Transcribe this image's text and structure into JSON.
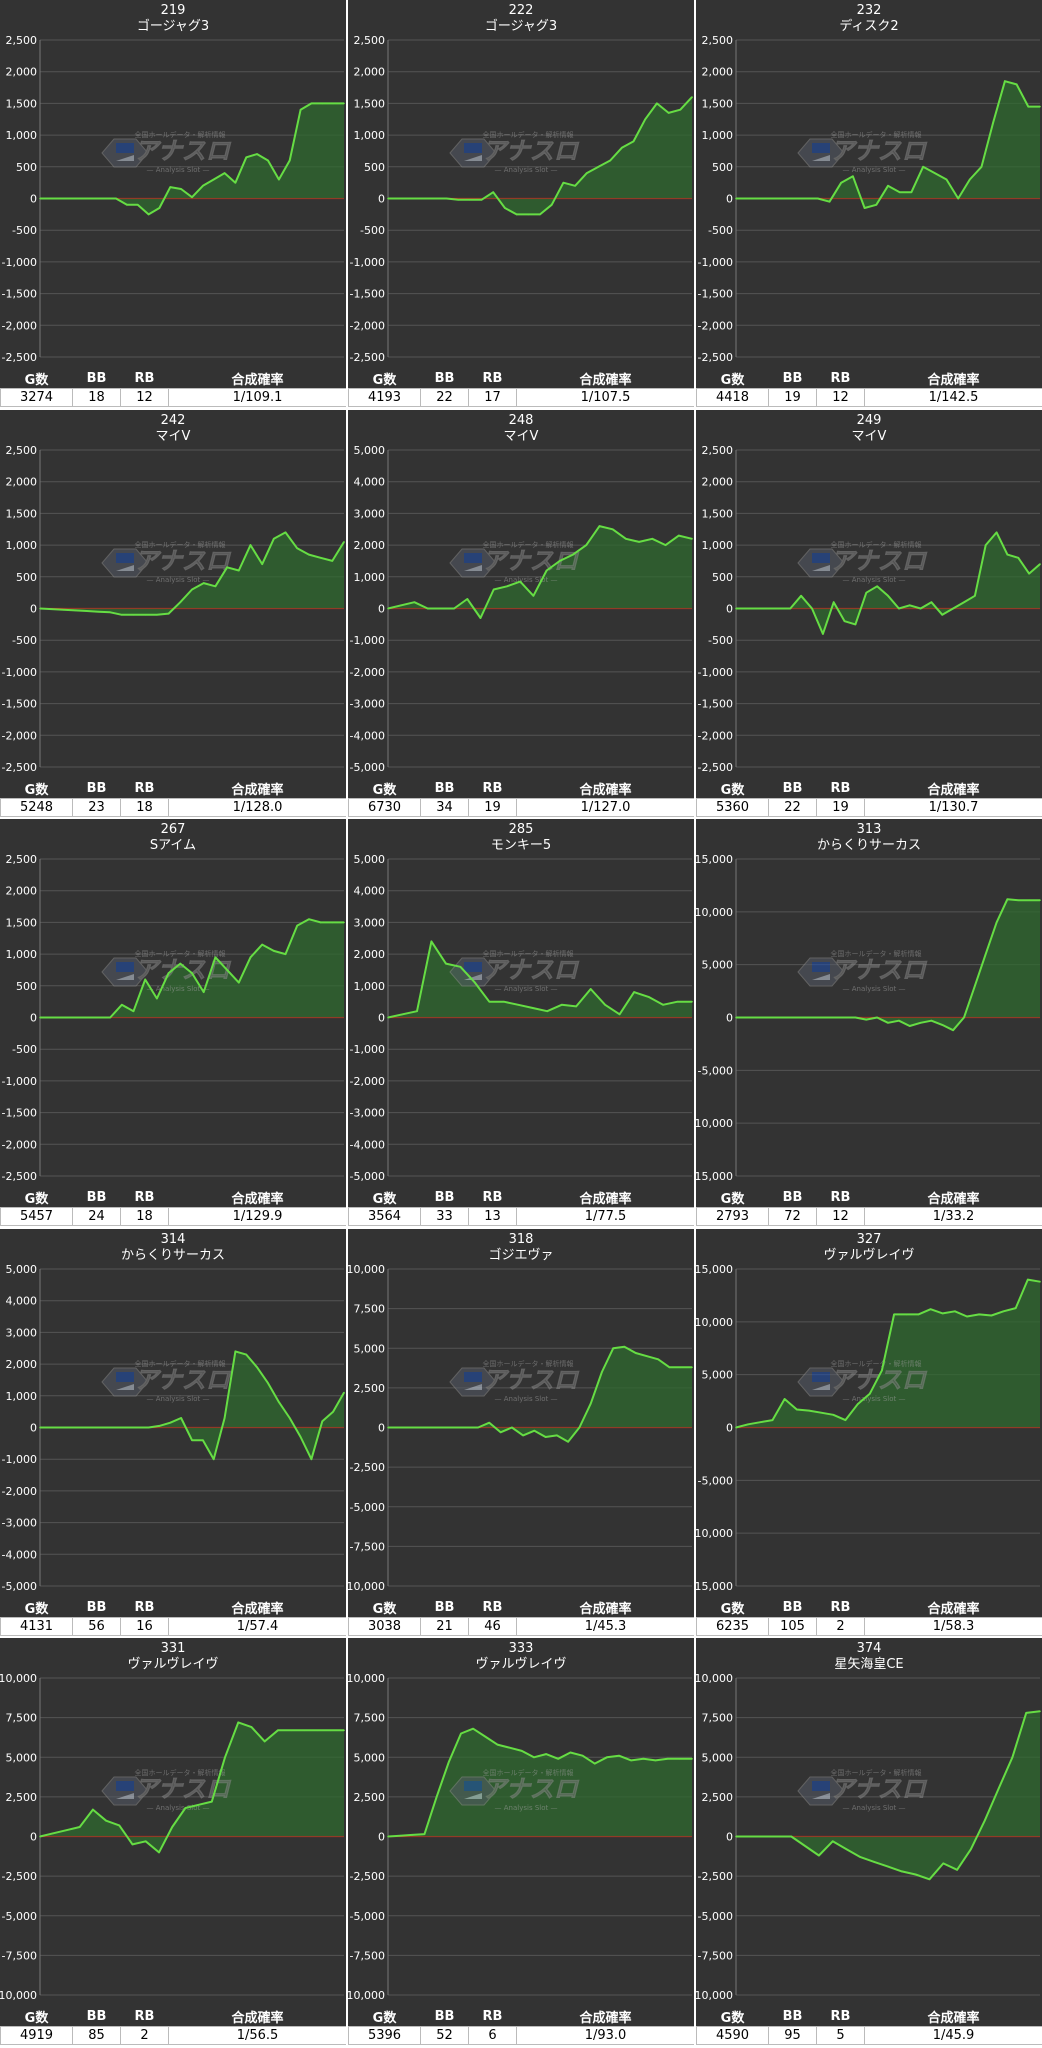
{
  "columns": [
    "G数",
    "BB",
    "RB",
    "合成確率"
  ],
  "watermark": {
    "brand": "アナスロ",
    "sub": "— Analysis Slot —",
    "top": "全国ホールデータ・解析情報"
  },
  "colors": {
    "line": "#66dd44",
    "fill": "#2f6a2f",
    "zero": "#cc2222",
    "grid": "#555555",
    "bg": "#333333"
  },
  "chart_data": [
    {
      "type": "area",
      "title": "219",
      "subtitle": "ゴージャグ3",
      "ylim": [
        -2500,
        2500
      ],
      "yticks": [
        "2,500",
        "2,000",
        "1,500",
        "1,000",
        "500",
        "0",
        "-500",
        "-1,000",
        "-1,500",
        "-2,000",
        "-2,500"
      ],
      "y": [
        0,
        0,
        0,
        0,
        0,
        0,
        0,
        0,
        -100,
        -100,
        -250,
        -150,
        180,
        150,
        20,
        200,
        300,
        400,
        250,
        650,
        700,
        600,
        300,
        600,
        1400,
        1500,
        1500,
        1500,
        1500
      ],
      "stats": {
        "g": "3274",
        "bb": "18",
        "rb": "12",
        "rate": "1/109.1"
      }
    },
    {
      "type": "area",
      "title": "222",
      "subtitle": "ゴージャグ3",
      "ylim": [
        -2500,
        2500
      ],
      "yticks": [
        "2,500",
        "2,000",
        "1,500",
        "1,000",
        "500",
        "0",
        "-500",
        "-1,000",
        "-1,500",
        "-2,000",
        "-2,500"
      ],
      "y": [
        0,
        0,
        0,
        0,
        0,
        0,
        -20,
        -20,
        -20,
        100,
        -150,
        -250,
        -250,
        -250,
        -100,
        250,
        200,
        400,
        500,
        600,
        800,
        900,
        1250,
        1500,
        1350,
        1400,
        1600
      ],
      "stats": {
        "g": "4193",
        "bb": "22",
        "rb": "17",
        "rate": "1/107.5"
      }
    },
    {
      "type": "area",
      "title": "232",
      "subtitle": "ディスク2",
      "ylim": [
        -2500,
        2500
      ],
      "yticks": [
        "2,500",
        "2,000",
        "1,500",
        "1,000",
        "500",
        "0",
        "-500",
        "-1,000",
        "-1,500",
        "-2,000",
        "-2,500"
      ],
      "y": [
        0,
        0,
        0,
        0,
        0,
        0,
        0,
        0,
        -50,
        250,
        350,
        -150,
        -100,
        200,
        100,
        100,
        500,
        400,
        300,
        0,
        300,
        500,
        1200,
        1850,
        1800,
        1450,
        1450
      ],
      "stats": {
        "g": "4418",
        "bb": "19",
        "rb": "12",
        "rate": "1/142.5"
      }
    },
    {
      "type": "area",
      "title": "242",
      "subtitle": "マイV",
      "ylim": [
        -2500,
        2500
      ],
      "yticks": [
        "2,500",
        "2,000",
        "1,500",
        "1,000",
        "500",
        "0",
        "-500",
        "-1,000",
        "-1,500",
        "-2,000",
        "-2,500"
      ],
      "y": [
        0,
        -10,
        -20,
        -30,
        -40,
        -50,
        -60,
        -100,
        -100,
        -100,
        -100,
        -80,
        100,
        300,
        400,
        350,
        650,
        600,
        1000,
        700,
        1100,
        1200,
        950,
        850,
        800,
        750,
        1050
      ],
      "stats": {
        "g": "5248",
        "bb": "23",
        "rb": "18",
        "rate": "1/128.0"
      }
    },
    {
      "type": "area",
      "title": "248",
      "subtitle": "マイV",
      "ylim": [
        -5000,
        5000
      ],
      "yticks": [
        "5,000",
        "4,000",
        "3,000",
        "2,000",
        "1,000",
        "0",
        "-1,000",
        "-2,000",
        "-3,000",
        "-4,000",
        "-5,000"
      ],
      "y": [
        0,
        100,
        200,
        0,
        0,
        0,
        300,
        -300,
        600,
        700,
        850,
        400,
        1200,
        1500,
        1700,
        2000,
        2600,
        2500,
        2200,
        2100,
        2200,
        2000,
        2300,
        2200
      ],
      "stats": {
        "g": "6730",
        "bb": "34",
        "rb": "19",
        "rate": "1/127.0"
      }
    },
    {
      "type": "area",
      "title": "249",
      "subtitle": "マイV",
      "ylim": [
        -2500,
        2500
      ],
      "yticks": [
        "2,500",
        "2,000",
        "1,500",
        "1,000",
        "500",
        "0",
        "-500",
        "-1,000",
        "-1,500",
        "-2,000",
        "-2,500"
      ],
      "y": [
        0,
        0,
        0,
        0,
        0,
        0,
        200,
        0,
        -400,
        100,
        -200,
        -250,
        250,
        350,
        200,
        0,
        50,
        0,
        100,
        -100,
        0,
        100,
        200,
        1000,
        1200,
        850,
        800,
        550,
        700
      ],
      "stats": {
        "g": "5360",
        "bb": "22",
        "rb": "19",
        "rate": "1/130.7"
      }
    },
    {
      "type": "area",
      "title": "267",
      "subtitle": "Sアイム",
      "ylim": [
        -2500,
        2500
      ],
      "yticks": [
        "2,500",
        "2,000",
        "1,500",
        "1,000",
        "500",
        "0",
        "-500",
        "-1,000",
        "-1,500",
        "-2,000",
        "-2,500"
      ],
      "y": [
        0,
        0,
        0,
        0,
        0,
        0,
        0,
        200,
        100,
        600,
        300,
        700,
        850,
        700,
        400,
        950,
        750,
        550,
        950,
        1150,
        1050,
        1000,
        1450,
        1550,
        1500,
        1500,
        1500
      ],
      "stats": {
        "g": "5457",
        "bb": "24",
        "rb": "18",
        "rate": "1/129.9"
      }
    },
    {
      "type": "area",
      "title": "285",
      "subtitle": "モンキー5",
      "ylim": [
        -5000,
        5000
      ],
      "yticks": [
        "5,000",
        "4,000",
        "3,000",
        "2,000",
        "1,000",
        "0",
        "-1,000",
        "-2,000",
        "-3,000",
        "-4,000",
        "-5,000"
      ],
      "y": [
        0,
        100,
        200,
        2400,
        1700,
        1600,
        1100,
        500,
        500,
        400,
        300,
        200,
        400,
        350,
        900,
        400,
        100,
        800,
        650,
        400,
        500,
        500
      ],
      "stats": {
        "g": "3564",
        "bb": "33",
        "rb": "13",
        "rate": "1/77.5"
      }
    },
    {
      "type": "area",
      "title": "313",
      "subtitle": "からくりサーカス",
      "ylim": [
        -15000,
        15000
      ],
      "yticks": [
        "15,000",
        "10,000",
        "5,000",
        "0",
        "-5,000",
        "-10,000",
        "-15,000"
      ],
      "y": [
        0,
        0,
        0,
        0,
        0,
        0,
        0,
        0,
        0,
        0,
        0,
        0,
        -200,
        0,
        -500,
        -300,
        -800,
        -500,
        -300,
        -700,
        -1200,
        0,
        3000,
        6000,
        9000,
        11200,
        11100,
        11100,
        11100
      ],
      "stats": {
        "g": "2793",
        "bb": "72",
        "rb": "12",
        "rate": "1/33.2"
      }
    },
    {
      "type": "area",
      "title": "314",
      "subtitle": "からくりサーカス",
      "ylim": [
        -5000,
        5000
      ],
      "yticks": [
        "5,000",
        "4,000",
        "3,000",
        "2,000",
        "1,000",
        "0",
        "-1,000",
        "-2,000",
        "-3,000",
        "-4,000",
        "-5,000"
      ],
      "y": [
        0,
        0,
        0,
        0,
        0,
        0,
        0,
        0,
        0,
        0,
        0,
        50,
        150,
        300,
        -400,
        -400,
        -1000,
        300,
        2400,
        2300,
        1900,
        1400,
        800,
        300,
        -300,
        -1000,
        200,
        500,
        1100
      ],
      "stats": {
        "g": "4131",
        "bb": "56",
        "rb": "16",
        "rate": "1/57.4"
      }
    },
    {
      "type": "area",
      "title": "318",
      "subtitle": "ゴジエヴァ",
      "ylim": [
        -10000,
        10000
      ],
      "yticks": [
        "10,000",
        "7,500",
        "5,000",
        "2,500",
        "0",
        "-2,500",
        "-5,000",
        "-7,500",
        "-10,000"
      ],
      "y": [
        0,
        0,
        0,
        0,
        0,
        0,
        0,
        0,
        0,
        300,
        -300,
        0,
        -500,
        -200,
        -600,
        -500,
        -900,
        0,
        1500,
        3500,
        5000,
        5100,
        4700,
        4500,
        4300,
        3800,
        3800,
        3800
      ],
      "stats": {
        "g": "3038",
        "bb": "21",
        "rb": "46",
        "rate": "1/45.3"
      }
    },
    {
      "type": "area",
      "title": "327",
      "subtitle": "ヴァルヴレイヴ",
      "ylim": [
        -15000,
        15000
      ],
      "yticks": [
        "15,000",
        "10,000",
        "5,000",
        "0",
        "-5,000",
        "-10,000",
        "-15,000"
      ],
      "y": [
        0,
        300,
        500,
        700,
        2700,
        1700,
        1600,
        1400,
        1200,
        700,
        2200,
        3200,
        5400,
        10700,
        10700,
        10700,
        11200,
        10800,
        11000,
        10500,
        10700,
        10600,
        11000,
        11300,
        14000,
        13800
      ],
      "stats": {
        "g": "6235",
        "bb": "105",
        "rb": "2",
        "rate": "1/58.3"
      }
    },
    {
      "type": "area",
      "title": "331",
      "subtitle": "ヴァルヴレイヴ",
      "ylim": [
        -10000,
        10000
      ],
      "yticks": [
        "10,000",
        "7,500",
        "5,000",
        "2,500",
        "0",
        "-2,500",
        "-5,000",
        "-7,500",
        "-10,000"
      ],
      "y": [
        0,
        200,
        400,
        600,
        1700,
        1000,
        700,
        -500,
        -300,
        -1000,
        600,
        1800,
        2000,
        2200,
        5000,
        7200,
        6900,
        6000,
        6700,
        6700,
        6700,
        6700,
        6700,
        6700
      ],
      "stats": {
        "g": "4919",
        "bb": "85",
        "rb": "2",
        "rate": "1/56.5"
      }
    },
    {
      "type": "area",
      "title": "333",
      "subtitle": "ヴァルヴレイヴ",
      "ylim": [
        -10000,
        10000
      ],
      "yticks": [
        "10,000",
        "7,500",
        "5,000",
        "2,500",
        "0",
        "-2,500",
        "-5,000",
        "-7,500",
        "-10,000"
      ],
      "y": [
        0,
        50,
        100,
        150,
        2500,
        4700,
        6500,
        6800,
        6300,
        5800,
        5600,
        5400,
        5000,
        5200,
        4900,
        5300,
        5100,
        4600,
        5000,
        5100,
        4800,
        4900,
        4800,
        4900,
        4900,
        4900
      ],
      "stats": {
        "g": "5396",
        "bb": "52",
        "rb": "6",
        "rate": "1/93.0"
      }
    },
    {
      "type": "area",
      "title": "374",
      "subtitle": "星矢海皇CE",
      "ylim": [
        -10000,
        10000
      ],
      "yticks": [
        "10,000",
        "7,500",
        "5,000",
        "2,500",
        "0",
        "-2,500",
        "-5,000",
        "-7,500",
        "-10,000"
      ],
      "y": [
        0,
        0,
        0,
        0,
        0,
        -600,
        -1200,
        -300,
        -800,
        -1300,
        -1600,
        -1900,
        -2200,
        -2400,
        -2700,
        -1700,
        -2100,
        -800,
        1000,
        3000,
        5000,
        7800,
        7900
      ],
      "stats": {
        "g": "4590",
        "bb": "95",
        "rb": "5",
        "rate": "1/45.9"
      }
    }
  ]
}
